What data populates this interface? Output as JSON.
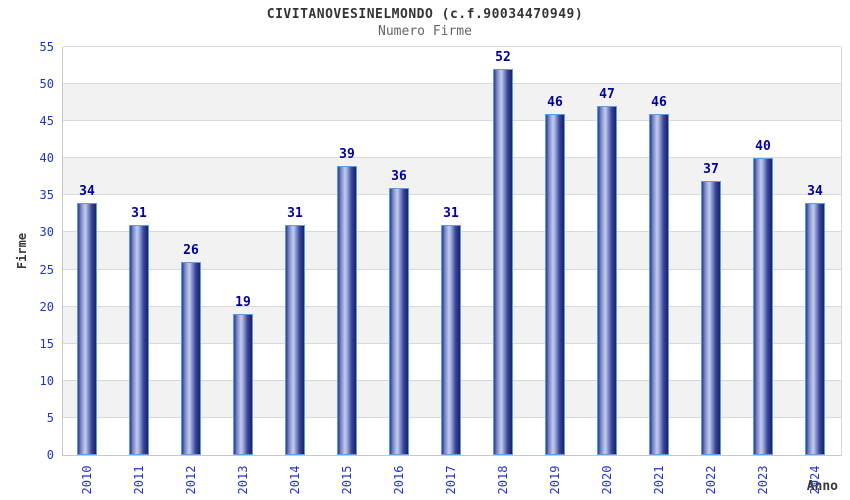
{
  "chart_data": {
    "type": "bar",
    "title": "CIVITANOVESINELMONDO (c.f.90034470949)",
    "subtitle": "Numero Firme",
    "xlabel": "Anno",
    "ylabel": "Firme",
    "categories": [
      "2010",
      "2011",
      "2012",
      "2013",
      "2014",
      "2015",
      "2016",
      "2017",
      "2018",
      "2019",
      "2020",
      "2021",
      "2022",
      "2023",
      "2024"
    ],
    "values": [
      34,
      31,
      26,
      19,
      31,
      39,
      36,
      31,
      52,
      46,
      47,
      46,
      37,
      40,
      34
    ],
    "ylim": [
      0,
      55
    ],
    "ytick_step": 5,
    "yticks": [
      0,
      5,
      10,
      15,
      20,
      25,
      30,
      35,
      40,
      45,
      50,
      55
    ],
    "grid": true,
    "legend_position": "none",
    "bar_value_labels_shown": true,
    "alternating_bands": true
  },
  "colors": {
    "title_text": "#333333",
    "subtitle_text": "#666666",
    "axis_tick_text": "#2233cc",
    "value_label_text": "#000099",
    "axis_name_text": "#383838",
    "bar_outline": "#5a9de8",
    "bar_dark": "#16206f",
    "bar_highlight": "#c4cdec",
    "band_gray": "#f2f2f2",
    "band_white": "#ffffff",
    "gridline": "#d9d9d9"
  }
}
